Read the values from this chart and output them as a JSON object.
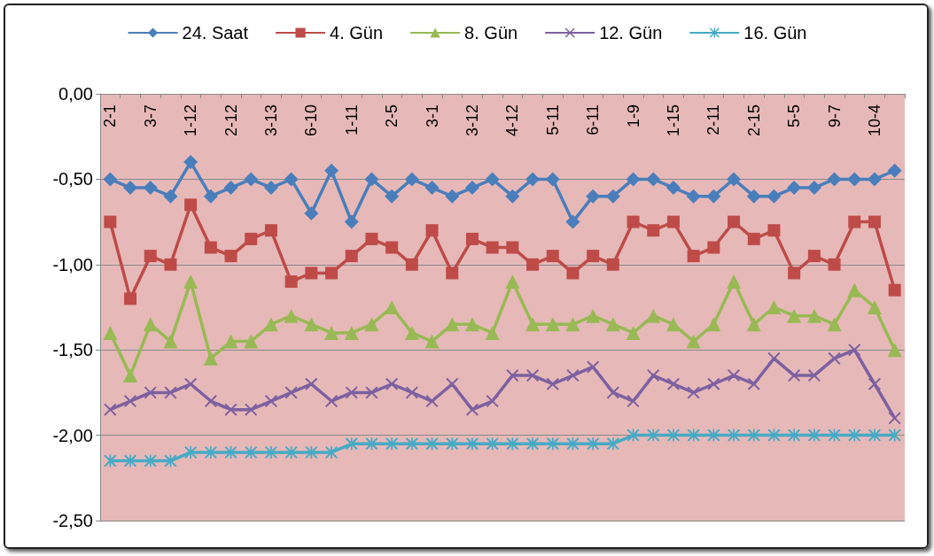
{
  "chart_data": {
    "type": "line",
    "categories": [
      "2-1",
      null,
      "3-7",
      null,
      "1-12",
      null,
      "2-12",
      null,
      "3-13",
      null,
      "6-10",
      null,
      "1-11",
      null,
      "2-5",
      null,
      "3-1",
      null,
      "3-12",
      null,
      "4-12",
      null,
      "5-11",
      null,
      "6-11",
      null,
      "1-9",
      null,
      "1-15",
      null,
      "2-11",
      null,
      "2-15",
      null,
      "5-5",
      null,
      "9-7",
      null,
      "10-4",
      null
    ],
    "series": [
      {
        "name": "24. Saat",
        "color": "#4a7ebb",
        "marker": "diamond",
        "values": [
          -0.5,
          -0.55,
          -0.55,
          -0.6,
          -0.4,
          -0.6,
          -0.55,
          -0.5,
          -0.55,
          -0.5,
          -0.7,
          -0.45,
          -0.75,
          -0.5,
          -0.6,
          -0.5,
          -0.55,
          -0.6,
          -0.55,
          -0.5,
          -0.6,
          -0.5,
          -0.5,
          -0.75,
          -0.6,
          -0.6,
          -0.5,
          -0.5,
          -0.55,
          -0.6,
          -0.6,
          -0.5,
          -0.6,
          -0.6,
          -0.55,
          -0.55,
          -0.5,
          -0.5,
          -0.5,
          -0.45
        ]
      },
      {
        "name": "4. Gün",
        "color": "#be4b48",
        "marker": "square",
        "values": [
          -0.75,
          -1.2,
          -0.95,
          -1.0,
          -0.65,
          -0.9,
          -0.95,
          -0.85,
          -0.8,
          -1.1,
          -1.05,
          -1.05,
          -0.95,
          -0.85,
          -0.9,
          -1.0,
          -0.8,
          -1.05,
          -0.85,
          -0.9,
          -0.9,
          -1.0,
          -0.95,
          -1.05,
          -0.95,
          -1.0,
          -0.75,
          -0.8,
          -0.75,
          -0.95,
          -0.9,
          -0.75,
          -0.85,
          -0.8,
          -1.05,
          -0.95,
          -1.0,
          -0.75,
          -0.75,
          -1.15
        ]
      },
      {
        "name": "8. Gün",
        "color": "#98b954",
        "marker": "triangle",
        "values": [
          -1.4,
          -1.65,
          -1.35,
          -1.45,
          -1.1,
          -1.55,
          -1.45,
          -1.45,
          -1.35,
          -1.3,
          -1.35,
          -1.4,
          -1.4,
          -1.35,
          -1.25,
          -1.4,
          -1.45,
          -1.35,
          -1.35,
          -1.4,
          -1.1,
          -1.35,
          -1.35,
          -1.35,
          -1.3,
          -1.35,
          -1.4,
          -1.3,
          -1.35,
          -1.45,
          -1.35,
          -1.1,
          -1.35,
          -1.25,
          -1.3,
          -1.3,
          -1.35,
          -1.15,
          -1.25,
          -1.5
        ]
      },
      {
        "name": "12. Gün",
        "color": "#7d60a0",
        "marker": "cross",
        "values": [
          -1.85,
          -1.8,
          -1.75,
          -1.75,
          -1.7,
          -1.8,
          -1.85,
          -1.85,
          -1.8,
          -1.75,
          -1.7,
          -1.8,
          -1.75,
          -1.75,
          -1.7,
          -1.75,
          -1.8,
          -1.7,
          -1.85,
          -1.8,
          -1.65,
          -1.65,
          -1.7,
          -1.65,
          -1.6,
          -1.75,
          -1.8,
          -1.65,
          -1.7,
          -1.75,
          -1.7,
          -1.65,
          -1.7,
          -1.55,
          -1.65,
          -1.65,
          -1.55,
          -1.5,
          -1.7,
          -1.9
        ]
      },
      {
        "name": "16. Gün",
        "color": "#46aac5",
        "marker": "star",
        "values": [
          -2.15,
          -2.15,
          -2.15,
          -2.15,
          -2.1,
          -2.1,
          -2.1,
          -2.1,
          -2.1,
          -2.1,
          -2.1,
          -2.1,
          -2.05,
          -2.05,
          -2.05,
          -2.05,
          -2.05,
          -2.05,
          -2.05,
          -2.05,
          -2.05,
          -2.05,
          -2.05,
          -2.05,
          -2.05,
          -2.05,
          -2.0,
          -2.0,
          -2.0,
          -2.0,
          -2.0,
          -2.0,
          -2.0,
          -2.0,
          -2.0,
          -2.0,
          -2.0,
          -2.0,
          -2.0,
          -2.0
        ]
      }
    ],
    "ylim": [
      -2.5,
      0
    ],
    "yticks": [
      {
        "value": 0,
        "label": "0,00"
      },
      {
        "value": -0.5,
        "label": "-0,50"
      },
      {
        "value": -1,
        "label": "-1,00"
      },
      {
        "value": -1.5,
        "label": "-1,50"
      },
      {
        "value": -2,
        "label": "-2,00"
      },
      {
        "value": -2.5,
        "label": "-2,50"
      }
    ],
    "grid": "y",
    "legend": "top",
    "line_style": "solid"
  }
}
